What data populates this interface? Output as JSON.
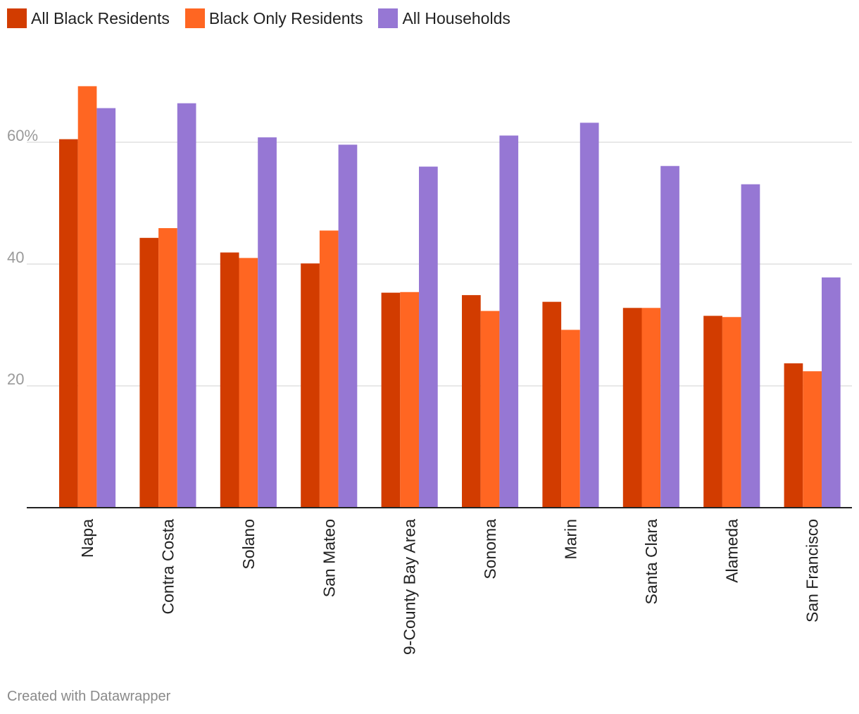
{
  "legend": [
    {
      "label": "All Black Residents",
      "color": "#d23c00"
    },
    {
      "label": "Black Only Residents",
      "color": "#ff6622"
    },
    {
      "label": "All Households",
      "color": "#9677d4"
    }
  ],
  "footer": {
    "text": "Created with Datawrapper"
  },
  "chart_data": {
    "type": "bar",
    "categories": [
      "Napa",
      "Contra Costa",
      "Solano",
      "San Mateo",
      "9-County Bay Area",
      "Sonoma",
      "Marin",
      "Santa Clara",
      "Alameda",
      "San Francisco"
    ],
    "series": [
      {
        "name": "All Black Residents",
        "color": "#d23c00",
        "values": [
          60.5,
          44.3,
          41.9,
          40.1,
          35.3,
          34.9,
          33.8,
          32.8,
          31.5,
          23.7
        ]
      },
      {
        "name": "Black Only Residents",
        "color": "#ff6622",
        "values": [
          69.2,
          45.9,
          41.0,
          45.5,
          35.4,
          32.3,
          29.2,
          32.8,
          31.3,
          22.4
        ]
      },
      {
        "name": "All Households",
        "color": "#9677d4",
        "values": [
          65.6,
          66.4,
          60.8,
          59.6,
          56.0,
          61.1,
          63.2,
          56.1,
          53.1,
          37.8
        ]
      }
    ],
    "yticks": [
      {
        "value": 20,
        "label": "20"
      },
      {
        "value": 40,
        "label": "40"
      },
      {
        "value": 60,
        "label": "60%"
      }
    ],
    "ylim": [
      0,
      80
    ],
    "grid": true,
    "legend_position": "top-left",
    "title": "",
    "xlabel": "",
    "ylabel": ""
  }
}
